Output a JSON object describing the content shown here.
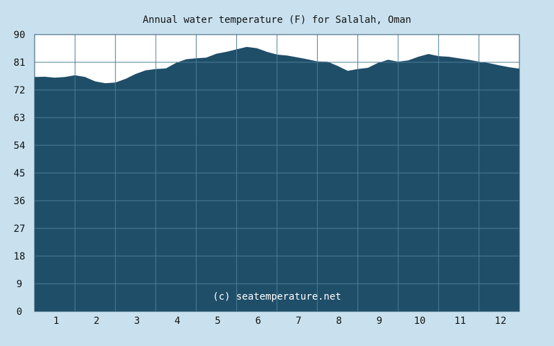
{
  "chart_data": {
    "type": "area",
    "title": "Annual water temperature (F) for Salalah, Oman",
    "watermark": "(c) seatemperature.net",
    "xlabel": "",
    "ylabel": "",
    "ylim": [
      0,
      90
    ],
    "yticks": [
      "0",
      "9",
      "18",
      "27",
      "36",
      "45",
      "54",
      "63",
      "72",
      "81",
      "90"
    ],
    "xlim": [
      0.5,
      12.5
    ],
    "xticks": [
      "1",
      "2",
      "3",
      "4",
      "5",
      "6",
      "7",
      "8",
      "9",
      "10",
      "11",
      "12"
    ],
    "grid": true,
    "x": [
      0.5,
      0.75,
      1.0,
      1.25,
      1.5,
      1.75,
      2.0,
      2.25,
      2.5,
      2.75,
      3.0,
      3.25,
      3.5,
      3.75,
      4.0,
      4.25,
      4.5,
      4.75,
      5.0,
      5.25,
      5.5,
      5.75,
      6.0,
      6.25,
      6.5,
      6.75,
      7.0,
      7.25,
      7.5,
      7.75,
      8.0,
      8.25,
      8.5,
      8.75,
      9.0,
      9.25,
      9.5,
      9.75,
      10.0,
      10.25,
      10.5,
      10.75,
      11.0,
      11.25,
      11.5,
      11.75,
      12.0,
      12.25,
      12.5
    ],
    "values": [
      76.2,
      76.3,
      76.0,
      76.2,
      76.8,
      76.2,
      74.8,
      74.2,
      74.4,
      75.6,
      77.2,
      78.4,
      78.8,
      79.0,
      80.8,
      82.0,
      82.3,
      82.5,
      83.8,
      84.4,
      85.2,
      86.0,
      85.6,
      84.4,
      83.5,
      83.2,
      82.6,
      82.0,
      81.3,
      81.2,
      79.8,
      78.2,
      78.8,
      79.2,
      80.8,
      81.8,
      81.2,
      81.6,
      82.8,
      83.7,
      83.0,
      82.8,
      82.3,
      81.8,
      81.2,
      80.7,
      80.0,
      79.4,
      78.9
    ],
    "colors": {
      "background": "#c9e1ee",
      "plot_background": "#ffffff",
      "fill": "#1f4e69",
      "grid": "#4d7c95",
      "border": "#2b5770"
    }
  }
}
